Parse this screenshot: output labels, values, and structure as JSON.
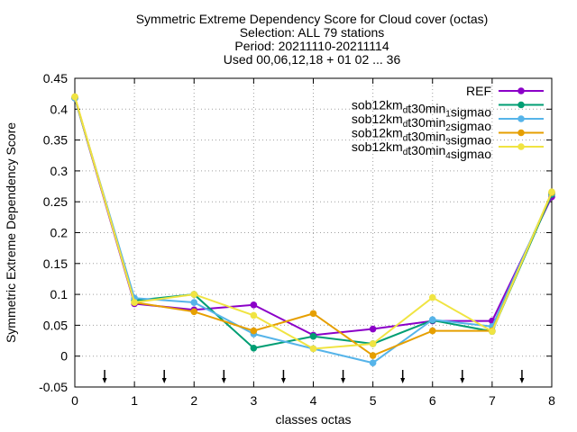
{
  "chart_data": {
    "type": "line",
    "title_lines": [
      "Symmetric Extreme Dependency Score  for Cloud cover (octas)",
      "Selection: ALL     79 stations",
      "Period: 20211110-20211114",
      "Used 00,06,12,18 + 01 02 ... 36"
    ],
    "xlabel": "classes octas",
    "ylabel": "Symmetric Extreme Dependency Score",
    "xlim": [
      0,
      8
    ],
    "ylim": [
      -0.05,
      0.45
    ],
    "x_ticks": [
      "0",
      "1",
      "2",
      "3",
      "4",
      "5",
      "6",
      "7",
      "8"
    ],
    "y_ticks": [
      "-0.05",
      "0",
      "0.05",
      "0.1",
      "0.15",
      "0.2",
      "0.25",
      "0.3",
      "0.35",
      "0.4",
      "0.45"
    ],
    "grid": true,
    "legend_position": "top-right",
    "arrow_markers_x": [
      0.5,
      1.5,
      2.5,
      3.5,
      4.5,
      5.5,
      6.5,
      7.5
    ],
    "x": [
      0,
      1,
      2,
      3,
      4,
      5,
      6,
      7,
      8
    ],
    "series": [
      {
        "name": "REF",
        "name_parts": [
          {
            "t": "REF",
            "s": ""
          }
        ],
        "color": "#8b00c8",
        "values": [
          0.418,
          0.085,
          0.075,
          0.083,
          0.034,
          0.044,
          0.057,
          0.057,
          0.258
        ]
      },
      {
        "name": "sob12km_dt30min_1sigmao",
        "name_parts": [
          {
            "t": "sob12km",
            "s": ""
          },
          {
            "t": "d",
            "s": "sub"
          },
          {
            "t": "t30min",
            "s": ""
          },
          {
            "t": "1",
            "s": "sub"
          },
          {
            "t": "sigmao",
            "s": ""
          }
        ],
        "color": "#009e73",
        "values": [
          0.418,
          0.09,
          0.1,
          0.013,
          0.032,
          0.02,
          0.058,
          0.04,
          0.262
        ]
      },
      {
        "name": "sob12km_dt30min_2sigmao",
        "name_parts": [
          {
            "t": "sob12km",
            "s": ""
          },
          {
            "t": "d",
            "s": "sub"
          },
          {
            "t": "t30min",
            "s": ""
          },
          {
            "t": "2",
            "s": "sub"
          },
          {
            "t": "sigmao",
            "s": ""
          }
        ],
        "color": "#56b4e9",
        "values": [
          0.418,
          0.094,
          0.087,
          0.036,
          0.012,
          -0.011,
          0.059,
          0.048,
          0.264
        ]
      },
      {
        "name": "sob12km_dt30min_3sigmao",
        "name_parts": [
          {
            "t": "sob12km",
            "s": ""
          },
          {
            "t": "d",
            "s": "sub"
          },
          {
            "t": "t30min",
            "s": ""
          },
          {
            "t": "3",
            "s": "sub"
          },
          {
            "t": "sigmao",
            "s": ""
          }
        ],
        "color": "#e69f00",
        "values": [
          0.42,
          0.087,
          0.072,
          0.041,
          0.069,
          0.001,
          0.041,
          0.041,
          0.265
        ]
      },
      {
        "name": "sob12km_dt30min_4sigmao",
        "name_parts": [
          {
            "t": "sob12km",
            "s": ""
          },
          {
            "t": "d",
            "s": "sub"
          },
          {
            "t": "t30min",
            "s": ""
          },
          {
            "t": "4",
            "s": "sub"
          },
          {
            "t": "sigmao",
            "s": ""
          }
        ],
        "color": "#f0e442",
        "values": [
          0.42,
          0.087,
          0.1,
          0.066,
          0.012,
          0.02,
          0.095,
          0.04,
          0.266
        ]
      }
    ]
  }
}
